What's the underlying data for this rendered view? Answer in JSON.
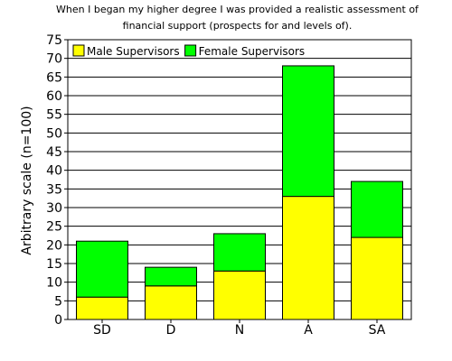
{
  "chart_data": {
    "type": "bar",
    "stacked": true,
    "title_lines": [
      "When I began my higher degree I was provided a realistic assessment of",
      "financial support (prospects for and levels of)."
    ],
    "xlabel": "",
    "ylabel": "Arbitrary scale (n=100)",
    "ylim": [
      0,
      75
    ],
    "yticks": [
      0,
      5,
      10,
      15,
      20,
      25,
      30,
      35,
      40,
      45,
      50,
      55,
      60,
      65,
      70,
      75
    ],
    "grid": true,
    "legend_placement": "top-left",
    "categories": [
      "SD",
      "D",
      "N",
      "A",
      "SA"
    ],
    "series": [
      {
        "name": "Male Supervisors",
        "color": "#ffff00",
        "values": [
          6,
          9,
          13,
          33,
          22
        ]
      },
      {
        "name": "Female Supervisors",
        "color": "#00ff00",
        "values": [
          15,
          5,
          10,
          35,
          15
        ]
      }
    ]
  }
}
